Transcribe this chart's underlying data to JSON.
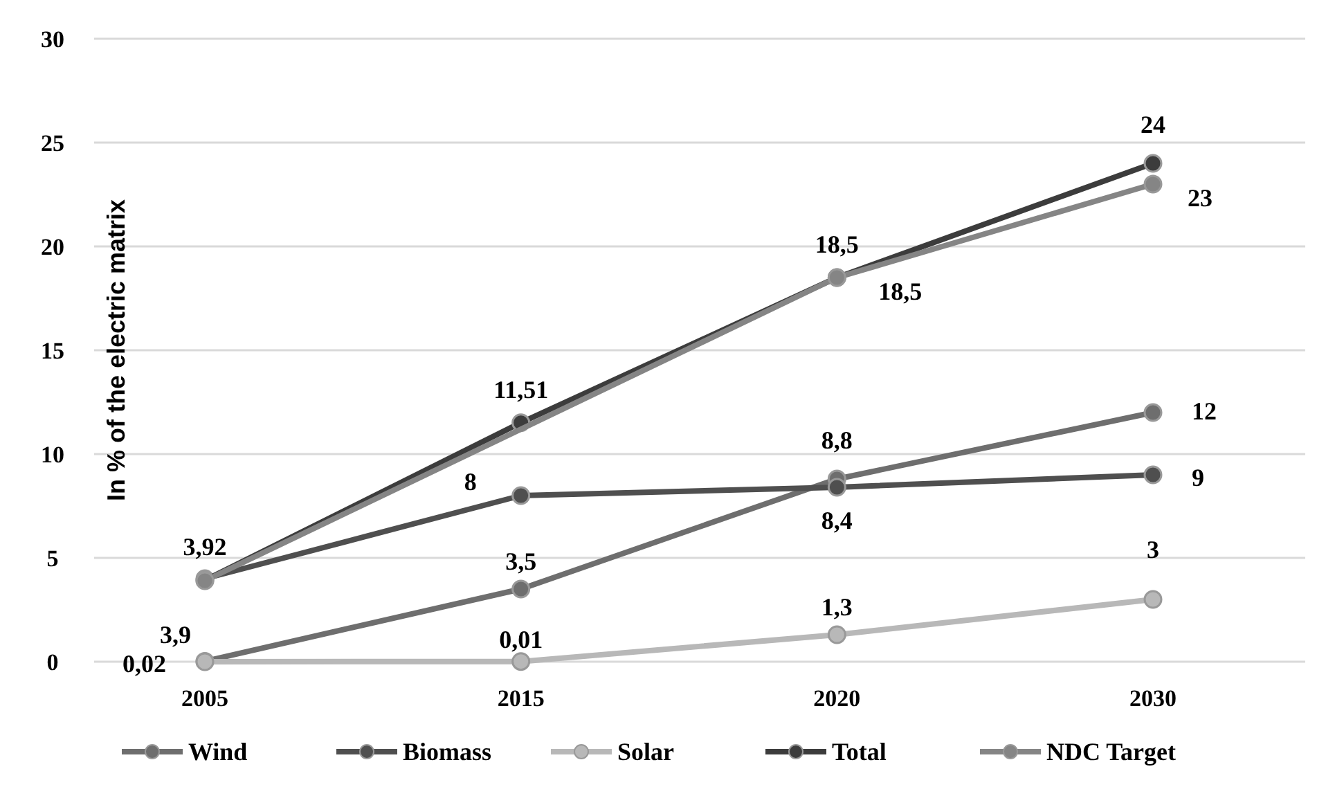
{
  "chart_data": {
    "type": "line",
    "ylabel": "In % of the electric matrix",
    "categories": [
      "2005",
      "2015",
      "2020",
      "2030"
    ],
    "ylim": [
      0,
      30
    ],
    "yticks": [
      0,
      5,
      10,
      15,
      20,
      25,
      30
    ],
    "grid": "y",
    "legend": "bottom",
    "marker": "circle",
    "line_style": "solid",
    "series": [
      {
        "name": "Wind",
        "color": "#6e6e6e",
        "values": [
          0.02,
          3.5,
          8.8,
          12
        ],
        "value_labels": [
          "0,02",
          "3,5",
          "8,8",
          "12"
        ]
      },
      {
        "name": "Biomass",
        "color": "#4f4f4f",
        "values": [
          4,
          8,
          8.4,
          9
        ],
        "value_labels": [
          null,
          "8",
          "8,4",
          "9"
        ]
      },
      {
        "name": "Solar",
        "color": "#b8b8b8",
        "values": [
          0,
          0.01,
          1.3,
          3
        ],
        "value_labels": [
          null,
          "0,01",
          "1,3",
          "3"
        ]
      },
      {
        "name": "Total",
        "color": "#3c3c3c",
        "values": [
          3.92,
          11.51,
          18.5,
          24
        ],
        "value_labels": [
          "3,92",
          "11,51",
          "18,5",
          "24"
        ]
      },
      {
        "name": "NDC Target",
        "color": "#858585",
        "values": [
          3.9,
          null,
          18.5,
          23
        ],
        "value_labels": [
          "3,9",
          null,
          "18,5",
          "23"
        ]
      }
    ]
  }
}
